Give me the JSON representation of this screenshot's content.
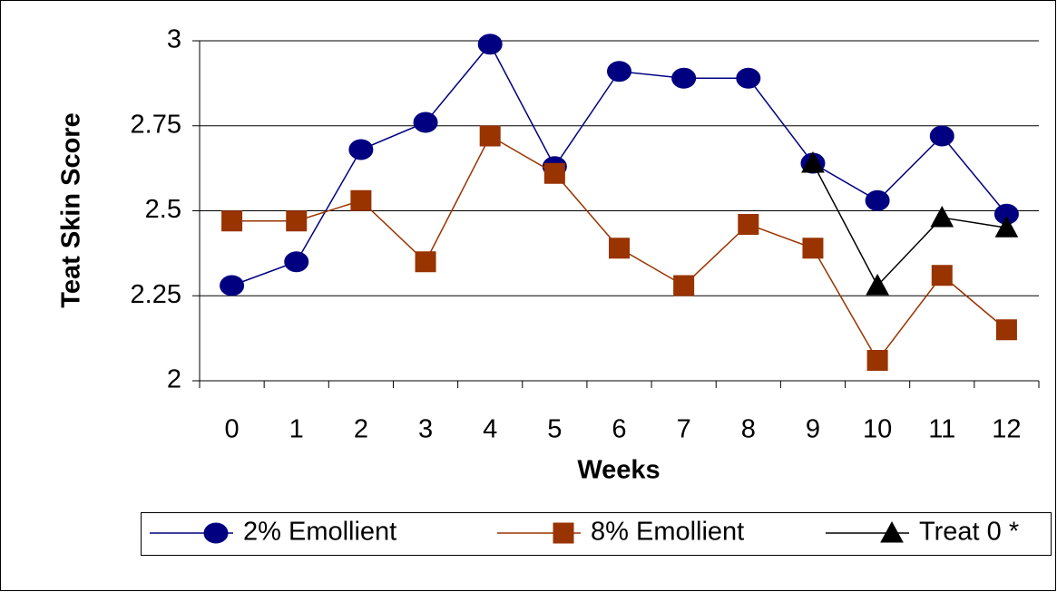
{
  "chart_data": {
    "type": "line",
    "y_label": "Teat Skin Score",
    "x_label": "Weeks",
    "categories": [
      "0",
      "1",
      "2",
      "3",
      "4",
      "5",
      "6",
      "7",
      "8",
      "9",
      "10",
      "11",
      "12"
    ],
    "series": [
      {
        "name": "2% Emollient",
        "color": "#000080",
        "marker": "circle",
        "values": [
          2.28,
          2.35,
          2.68,
          2.76,
          2.99,
          2.63,
          2.91,
          2.89,
          2.89,
          2.64,
          2.53,
          2.72,
          2.49
        ]
      },
      {
        "name": "8% Emollient",
        "color": "#993300",
        "marker": "square",
        "values": [
          2.47,
          2.47,
          2.53,
          2.35,
          2.72,
          2.61,
          2.39,
          2.28,
          2.46,
          2.39,
          2.06,
          2.31,
          2.15
        ]
      },
      {
        "name": "Treat 0 *",
        "color": "#000000",
        "marker": "triangle",
        "values": [
          null,
          null,
          null,
          null,
          null,
          null,
          null,
          null,
          null,
          2.64,
          2.28,
          2.48,
          2.45
        ]
      }
    ],
    "ylim": [
      2,
      3
    ],
    "yticks": [
      2,
      2.25,
      2.5,
      2.75,
      3
    ],
    "grid": true,
    "legend": "bottom"
  }
}
